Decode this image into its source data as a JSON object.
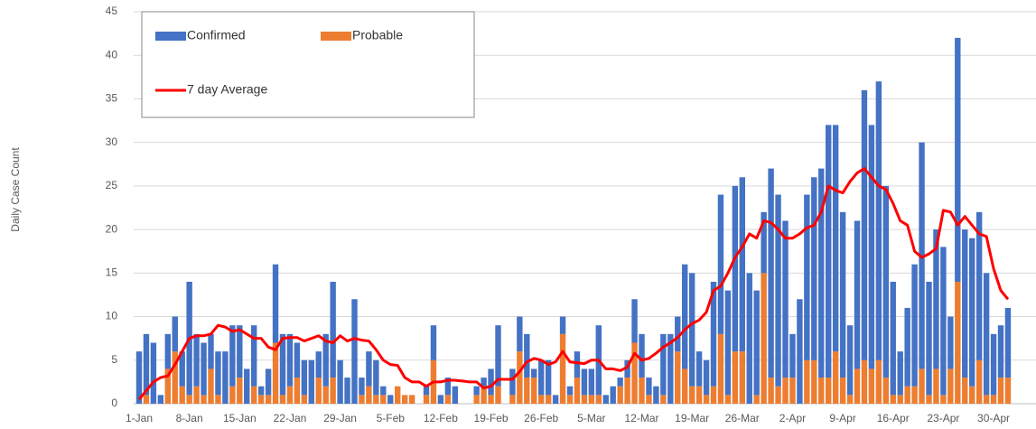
{
  "chart_data": {
    "type": "stacked_bar_line",
    "y_label": "Daily Case Count",
    "categories": [
      "1-Jan",
      null,
      null,
      null,
      null,
      null,
      null,
      "8-Jan",
      null,
      null,
      null,
      null,
      null,
      null,
      "15-Jan",
      null,
      null,
      null,
      null,
      null,
      null,
      "22-Jan",
      null,
      null,
      null,
      null,
      null,
      null,
      "29-Jan",
      null,
      null,
      null,
      null,
      null,
      null,
      "5-Feb",
      null,
      null,
      null,
      null,
      null,
      null,
      "12-Feb",
      null,
      null,
      null,
      null,
      null,
      null,
      "19-Feb",
      null,
      null,
      null,
      null,
      null,
      null,
      "26-Feb",
      null,
      null,
      null,
      null,
      null,
      null,
      "5-Mar",
      null,
      null,
      null,
      null,
      null,
      null,
      "12-Mar",
      null,
      null,
      null,
      null,
      null,
      null,
      "19-Mar",
      null,
      null,
      null,
      null,
      null,
      null,
      "26-Mar",
      null,
      null,
      null,
      null,
      null,
      null,
      "2-Apr",
      null,
      null,
      null,
      null,
      null,
      null,
      "9-Apr",
      null,
      null,
      null,
      null,
      null,
      null,
      "16-Apr",
      null,
      null,
      null,
      null,
      null,
      null,
      "23-Apr",
      null,
      null,
      null,
      null,
      null,
      null,
      "30-Apr",
      null,
      null
    ],
    "series": [
      {
        "name": "Confirmed",
        "color": "#4472c4",
        "values": [
          6,
          7,
          7,
          1,
          4,
          4,
          4,
          13,
          6,
          6,
          4,
          5,
          6,
          7,
          6,
          4,
          7,
          1,
          3,
          9,
          7,
          6,
          4,
          4,
          5,
          3,
          6,
          11,
          5,
          3,
          12,
          2,
          4,
          4,
          1,
          1,
          0,
          0,
          0,
          0,
          1,
          4,
          1,
          2,
          2,
          0,
          0,
          1,
          1,
          3,
          7,
          0,
          3,
          4,
          5,
          1,
          4,
          4,
          1,
          2,
          1,
          3,
          3,
          3,
          8,
          1,
          2,
          1,
          2,
          5,
          5,
          2,
          2,
          7,
          8,
          4,
          12,
          13,
          4,
          4,
          12,
          16,
          12,
          19,
          20,
          15,
          12,
          7,
          24,
          22,
          18,
          5,
          12,
          19,
          21,
          24,
          29,
          26,
          19,
          8,
          17,
          31,
          28,
          32,
          22,
          13,
          5,
          9,
          14,
          26,
          13,
          16,
          17,
          6,
          28,
          17,
          17,
          17,
          14,
          7,
          6,
          8
        ]
      },
      {
        "name": "Probable",
        "color": "#ed7d31",
        "values": [
          0,
          1,
          0,
          0,
          4,
          6,
          2,
          1,
          2,
          1,
          4,
          1,
          0,
          2,
          3,
          0,
          2,
          1,
          1,
          7,
          1,
          2,
          3,
          1,
          0,
          3,
          2,
          3,
          0,
          0,
          0,
          1,
          2,
          1,
          1,
          0,
          2,
          1,
          1,
          0,
          1,
          5,
          0,
          1,
          0,
          0,
          0,
          1,
          2,
          1,
          2,
          0,
          1,
          6,
          3,
          3,
          1,
          1,
          0,
          8,
          1,
          3,
          1,
          1,
          1,
          0,
          0,
          2,
          3,
          7,
          3,
          1,
          0,
          1,
          0,
          6,
          4,
          2,
          2,
          1,
          2,
          8,
          1,
          6,
          6,
          0,
          1,
          15,
          3,
          2,
          3,
          3,
          0,
          5,
          5,
          3,
          3,
          6,
          3,
          1,
          4,
          5,
          4,
          5,
          3,
          1,
          1,
          2,
          2,
          4,
          1,
          4,
          1,
          4,
          14,
          3,
          2,
          5,
          1,
          1,
          3,
          3
        ]
      },
      {
        "name": "7 day Average",
        "color": "#ff0000",
        "type": "line",
        "values": [
          0.5,
          1.5,
          2.5,
          3,
          3.2,
          4.5,
          6,
          7.5,
          7.8,
          7.8,
          8,
          9,
          8.8,
          8.3,
          8.5,
          8,
          7.5,
          7.5,
          6.5,
          6.2,
          7.5,
          7.6,
          7.6,
          7.2,
          7.5,
          7.8,
          7.2,
          7,
          7.8,
          7.2,
          7.5,
          7.3,
          7.2,
          6.2,
          5,
          4.5,
          4.4,
          3,
          2.5,
          2.5,
          2,
          2.5,
          2.5,
          2.7,
          2.7,
          2.6,
          2.5,
          2.5,
          1.8,
          2,
          2.8,
          2.8,
          2.8,
          3.7,
          4.8,
          5.2,
          5,
          4.5,
          4.8,
          6,
          4.8,
          4.7,
          4.6,
          5,
          5,
          4,
          4,
          3.8,
          4.2,
          5.8,
          5,
          5.2,
          5.8,
          6.5,
          7,
          7.6,
          8.5,
          9.2,
          9.6,
          10.5,
          13,
          13.5,
          15,
          16.8,
          18,
          19.5,
          19,
          21,
          20.8,
          20,
          19,
          19,
          19.5,
          20.2,
          20.5,
          22,
          25,
          24.5,
          24.2,
          25.5,
          26.5,
          27,
          26,
          25,
          24.6,
          23,
          21,
          20.5,
          17.5,
          16.8,
          17.2,
          17.8,
          22.2,
          22,
          20.5,
          21.5,
          20.5,
          19.5,
          19.2,
          15.5,
          13,
          12
        ]
      }
    ],
    "ylim": [
      0,
      45
    ],
    "yticks": [
      0,
      5,
      10,
      15,
      20,
      25,
      30,
      35,
      40,
      45
    ],
    "grid": true
  }
}
